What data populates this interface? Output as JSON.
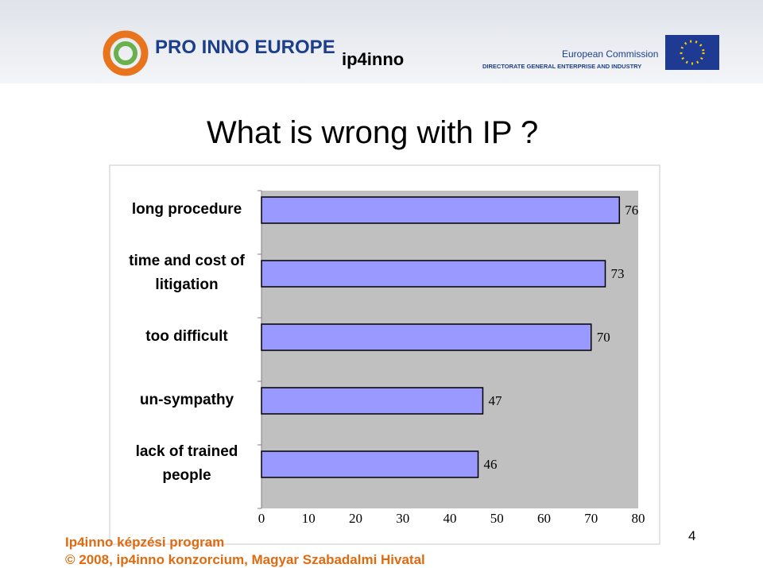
{
  "header": {
    "logo": "PRO INNO EUROPE",
    "project": "ip4inno",
    "commission": "European Commission",
    "directorate": "DIRECTORATE GENERAL ENTERPRISE AND INDUSTRY"
  },
  "chart_data": {
    "type": "bar",
    "orientation": "horizontal",
    "title": "What is wrong with IP ?",
    "categories": [
      "long procedure",
      "time and cost of litigation",
      "too difficult",
      "un-sympathy",
      "lack of trained people"
    ],
    "values": [
      76,
      73,
      70,
      47,
      46
    ],
    "color": "#9999ff",
    "xlim": [
      0,
      80
    ],
    "xticks": [
      0,
      10,
      20,
      30,
      40,
      50,
      60,
      70,
      80
    ],
    "grid": false
  },
  "footer": {
    "program": "Ip4inno képzési program",
    "copyright": "© 2008, ip4inno konzorcium, Magyar Szabadalmi Hivatal",
    "page": "4"
  }
}
